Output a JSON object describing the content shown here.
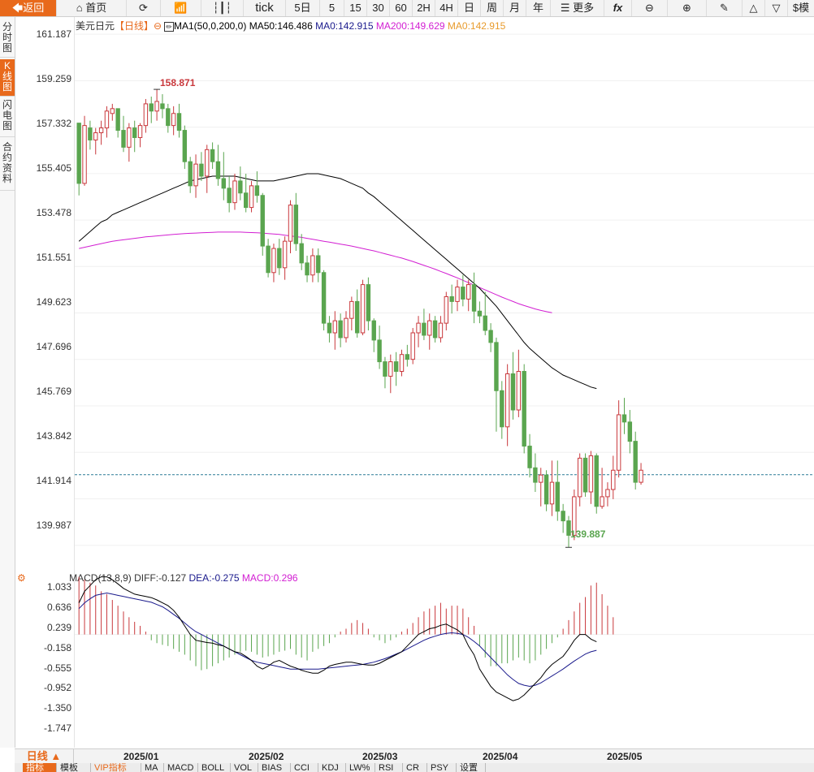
{
  "toolbar": {
    "back": "返回",
    "home": "首页",
    "tick": "tick",
    "periods": [
      "5日",
      "5",
      "15",
      "30",
      "60",
      "2H",
      "4H",
      "日",
      "周",
      "月",
      "年"
    ],
    "more": "更多",
    "fx": "fx",
    "right_label": "模"
  },
  "sidebar": {
    "items": [
      "分时图",
      "K线图",
      "闪电图",
      "合约资料"
    ],
    "active": 1
  },
  "main_header": {
    "title": "美元日元",
    "period": "【日线】",
    "ma_params": "MA1(50,0,200,0)",
    "ma50": "MA50:146.486",
    "ma0": "MA0:142.915",
    "ma200": "MA200:149.629",
    "ma0b": "MA0:142.915"
  },
  "macd_header": {
    "name": "MACD(13,8,9)",
    "diff": "DIFF:-0.127",
    "dea": "DEA:-0.275",
    "macd": "MACD:0.296"
  },
  "bottom": {
    "period_button": "日线 ▲",
    "tabs": [
      "指标",
      "模板",
      "VIP指标",
      "MA",
      "MACD",
      "BOLL",
      "VOL",
      "BIAS",
      "CCI",
      "KDJ",
      "LW%",
      "RSI",
      "CR",
      "PSY",
      "设置"
    ]
  },
  "colors": {
    "up": "#c9383c",
    "down": "#5aa54f",
    "ma50": "#000000",
    "ma200": "#d21ed2",
    "accent": "#e8691b",
    "diff": "#000000",
    "dea": "#1a1a8c"
  },
  "chart_data": [
    {
      "type": "candlestick",
      "y_ticks": [
        "161.187",
        "159.259",
        "157.332",
        "155.405",
        "153.478",
        "151.551",
        "149.623",
        "147.696",
        "145.769",
        "143.842",
        "141.914",
        "139.987"
      ],
      "ylim": [
        139.0,
        161.9
      ],
      "x_ticks": [
        "2025/01",
        "2025/02",
        "2025/03",
        "2025/04",
        "2025/05"
      ],
      "high_label": "158.871",
      "low_label": "139.887",
      "current_price": 142.915,
      "ohlc": [
        [
          157.5,
          157.5,
          154.5,
          155.0
        ],
        [
          155.0,
          157.8,
          154.9,
          157.4
        ],
        [
          157.3,
          157.6,
          156.4,
          156.8
        ],
        [
          156.8,
          157.3,
          156.2,
          157.1
        ],
        [
          157.1,
          157.6,
          156.6,
          157.3
        ],
        [
          157.3,
          158.2,
          156.9,
          158.0
        ],
        [
          157.9,
          158.3,
          157.6,
          158.1
        ],
        [
          158.1,
          158.1,
          156.9,
          157.2
        ],
        [
          157.2,
          157.8,
          156.3,
          156.5
        ],
        [
          156.5,
          157.5,
          155.9,
          157.3
        ],
        [
          157.3,
          157.6,
          156.3,
          156.9
        ],
        [
          156.9,
          157.5,
          156.5,
          157.4
        ],
        [
          157.4,
          158.5,
          157.1,
          158.3
        ],
        [
          158.3,
          158.6,
          157.5,
          158.0
        ],
        [
          158.0,
          158.9,
          157.6,
          158.4
        ],
        [
          158.3,
          158.7,
          157.7,
          158.1
        ],
        [
          158.1,
          158.3,
          157.1,
          157.4
        ],
        [
          157.4,
          158.2,
          157.0,
          157.9
        ],
        [
          157.9,
          158.3,
          156.9,
          157.2
        ],
        [
          157.2,
          157.4,
          155.6,
          155.9
        ],
        [
          155.9,
          156.1,
          154.6,
          154.9
        ],
        [
          154.9,
          156.2,
          154.4,
          155.8
        ],
        [
          155.8,
          156.3,
          155.1,
          155.3
        ],
        [
          155.3,
          156.6,
          154.6,
          156.4
        ],
        [
          156.4,
          156.7,
          155.6,
          155.9
        ],
        [
          155.9,
          156.6,
          154.9,
          155.2
        ],
        [
          155.2,
          156.3,
          154.3,
          154.8
        ],
        [
          154.8,
          155.3,
          153.8,
          154.2
        ],
        [
          154.2,
          155.4,
          153.9,
          155.1
        ],
        [
          155.1,
          155.7,
          154.3,
          154.6
        ],
        [
          154.6,
          155.4,
          153.8,
          154.0
        ],
        [
          154.0,
          155.1,
          153.8,
          154.9
        ],
        [
          154.9,
          155.5,
          154.2,
          154.5
        ],
        [
          154.5,
          154.6,
          152.0,
          152.4
        ],
        [
          152.4,
          152.7,
          151.1,
          151.3
        ],
        [
          151.3,
          152.5,
          150.9,
          152.3
        ],
        [
          152.3,
          152.7,
          151.2,
          151.5
        ],
        [
          151.5,
          152.8,
          151.0,
          152.6
        ],
        [
          152.6,
          154.3,
          152.1,
          154.1
        ],
        [
          154.1,
          154.6,
          152.2,
          152.5
        ],
        [
          152.5,
          152.9,
          151.4,
          151.7
        ],
        [
          151.7,
          152.0,
          150.9,
          151.2
        ],
        [
          151.2,
          152.3,
          150.9,
          152.0
        ],
        [
          152.0,
          152.3,
          150.9,
          151.3
        ],
        [
          151.3,
          151.4,
          148.9,
          149.2
        ],
        [
          149.2,
          149.5,
          148.4,
          148.8
        ],
        [
          148.8,
          149.7,
          148.1,
          149.3
        ],
        [
          149.3,
          149.6,
          148.2,
          148.6
        ],
        [
          148.6,
          149.7,
          148.4,
          149.4
        ],
        [
          149.4,
          150.3,
          148.9,
          150.1
        ],
        [
          150.1,
          150.6,
          148.6,
          148.8
        ],
        [
          148.8,
          151.0,
          148.7,
          150.8
        ],
        [
          150.8,
          151.1,
          148.9,
          149.3
        ],
        [
          149.3,
          149.4,
          148.0,
          148.5
        ],
        [
          148.5,
          149.1,
          147.3,
          147.6
        ],
        [
          147.6,
          147.8,
          146.5,
          147.0
        ],
        [
          147.0,
          147.9,
          146.3,
          147.6
        ],
        [
          147.6,
          148.0,
          146.6,
          147.2
        ],
        [
          147.2,
          148.1,
          147.0,
          147.9
        ],
        [
          147.9,
          148.3,
          147.4,
          147.7
        ],
        [
          147.7,
          149.0,
          147.5,
          148.8
        ],
        [
          148.8,
          149.5,
          148.2,
          149.2
        ],
        [
          149.2,
          149.8,
          148.5,
          148.7
        ],
        [
          148.7,
          149.6,
          148.1,
          149.3
        ],
        [
          149.3,
          149.5,
          148.4,
          148.6
        ],
        [
          148.6,
          149.5,
          148.4,
          149.2
        ],
        [
          149.2,
          150.5,
          148.9,
          150.3
        ],
        [
          150.3,
          150.8,
          149.6,
          150.1
        ],
        [
          150.1,
          151.0,
          149.7,
          150.7
        ],
        [
          150.7,
          151.2,
          149.9,
          150.2
        ],
        [
          150.2,
          151.0,
          149.7,
          150.8
        ],
        [
          150.8,
          151.3,
          149.2,
          149.7
        ],
        [
          149.7,
          150.1,
          149.2,
          149.5
        ],
        [
          149.5,
          150.5,
          148.7,
          148.9
        ],
        [
          148.9,
          149.2,
          148.0,
          148.4
        ],
        [
          148.4,
          148.6,
          144.7,
          146.4
        ],
        [
          146.4,
          146.8,
          144.4,
          144.9
        ],
        [
          144.9,
          147.5,
          144.1,
          147.1
        ],
        [
          147.1,
          148.0,
          145.2,
          145.6
        ],
        [
          145.6,
          148.1,
          145.3,
          147.2
        ],
        [
          147.2,
          147.5,
          143.8,
          144.1
        ],
        [
          144.1,
          144.6,
          142.8,
          143.2
        ],
        [
          143.2,
          143.8,
          142.2,
          142.6
        ],
        [
          142.6,
          143.2,
          141.6,
          142.9
        ],
        [
          142.9,
          143.1,
          141.4,
          141.7
        ],
        [
          141.7,
          143.5,
          141.2,
          142.6
        ],
        [
          142.6,
          143.5,
          141.0,
          141.4
        ],
        [
          141.4,
          141.7,
          140.5,
          141.0
        ],
        [
          141.0,
          141.2,
          139.9,
          140.4
        ],
        [
          140.4,
          142.3,
          140.2,
          142.0
        ],
        [
          142.0,
          143.8,
          141.6,
          143.6
        ],
        [
          143.6,
          143.8,
          142.0,
          142.2
        ],
        [
          142.2,
          143.9,
          141.7,
          143.7
        ],
        [
          143.7,
          143.8,
          141.3,
          141.6
        ],
        [
          141.6,
          143.2,
          141.5,
          142.0
        ],
        [
          142.0,
          142.6,
          141.6,
          142.3
        ],
        [
          142.3,
          143.7,
          141.9,
          143.1
        ],
        [
          143.1,
          146.0,
          142.8,
          145.4
        ],
        [
          145.4,
          146.1,
          144.6,
          145.1
        ],
        [
          145.1,
          145.6,
          143.8,
          144.3
        ],
        [
          144.3,
          144.7,
          142.3,
          142.6
        ],
        [
          142.6,
          143.4,
          142.5,
          143.1
        ]
      ],
      "ma50": [
        152.6,
        152.8,
        153.0,
        153.2,
        153.4,
        153.5,
        153.7,
        153.8,
        153.9,
        154.0,
        154.1,
        154.2,
        154.3,
        154.4,
        154.5,
        154.6,
        154.7,
        154.8,
        154.9,
        155.0,
        155.1,
        155.15,
        155.2,
        155.25,
        155.3,
        155.3,
        155.3,
        155.3,
        155.3,
        155.25,
        155.2,
        155.15,
        155.1,
        155.1,
        155.1,
        155.1,
        155.15,
        155.2,
        155.25,
        155.3,
        155.35,
        155.4,
        155.4,
        155.4,
        155.35,
        155.3,
        155.25,
        155.2,
        155.1,
        155.0,
        154.9,
        154.8,
        154.6,
        154.45,
        154.25,
        154.05,
        153.85,
        153.65,
        153.45,
        153.25,
        153.05,
        152.85,
        152.65,
        152.45,
        152.25,
        152.05,
        151.85,
        151.65,
        151.45,
        151.25,
        151.05,
        150.85,
        150.65,
        150.4,
        150.15,
        149.9,
        149.6,
        149.3,
        149.0,
        148.7,
        148.4,
        148.15,
        147.95,
        147.75,
        147.55,
        147.35,
        147.2,
        147.05,
        146.95,
        146.85,
        146.75,
        146.65,
        146.55,
        146.49
      ],
      "ma200": [
        152.3,
        152.35,
        152.4,
        152.45,
        152.5,
        152.55,
        152.6,
        152.63,
        152.66,
        152.69,
        152.72,
        152.75,
        152.78,
        152.8,
        152.82,
        152.84,
        152.86,
        152.88,
        152.9,
        152.92,
        152.93,
        152.94,
        152.95,
        152.96,
        152.97,
        152.98,
        152.98,
        152.98,
        152.98,
        152.98,
        152.97,
        152.96,
        152.95,
        152.94,
        152.92,
        152.9,
        152.88,
        152.85,
        152.82,
        152.79,
        152.76,
        152.72,
        152.68,
        152.64,
        152.6,
        152.56,
        152.52,
        152.48,
        152.44,
        152.4,
        152.35,
        152.3,
        152.25,
        152.2,
        152.14,
        152.08,
        152.02,
        151.96,
        151.9,
        151.83,
        151.76,
        151.68,
        151.6,
        151.52,
        151.44,
        151.35,
        151.26,
        151.17,
        151.08,
        150.98,
        150.88,
        150.78,
        150.68,
        150.58,
        150.48,
        150.38,
        150.28,
        150.19,
        150.1,
        150.01,
        149.93,
        149.86,
        149.79,
        149.73,
        149.68,
        149.63
      ],
      "ma_start_index": 0
    },
    {
      "type": "macd",
      "y_ticks": [
        "1.033",
        "0.636",
        "0.239",
        "-0.158",
        "-0.555",
        "-0.952",
        "-1.350",
        "-1.747"
      ],
      "ylim": [
        -1.95,
        1.15
      ],
      "diff": [
        0.55,
        0.75,
        0.85,
        0.95,
        1.0,
        1.0,
        0.95,
        0.88,
        0.8,
        0.75,
        0.7,
        0.68,
        0.66,
        0.64,
        0.6,
        0.55,
        0.5,
        0.42,
        0.3,
        0.15,
        0.0,
        -0.1,
        -0.12,
        -0.14,
        -0.15,
        -0.18,
        -0.2,
        -0.25,
        -0.3,
        -0.32,
        -0.38,
        -0.45,
        -0.55,
        -0.6,
        -0.55,
        -0.48,
        -0.45,
        -0.5,
        -0.55,
        -0.58,
        -0.62,
        -0.65,
        -0.67,
        -0.67,
        -0.62,
        -0.55,
        -0.52,
        -0.5,
        -0.48,
        -0.48,
        -0.5,
        -0.52,
        -0.53,
        -0.53,
        -0.5,
        -0.45,
        -0.4,
        -0.35,
        -0.3,
        -0.2,
        -0.1,
        0.0,
        0.05,
        0.1,
        0.12,
        0.16,
        0.18,
        0.13,
        0.08,
        0.0,
        -0.2,
        -0.35,
        -0.6,
        -0.75,
        -0.9,
        -1.0,
        -1.05,
        -1.1,
        -1.15,
        -1.12,
        -1.05,
        -0.95,
        -0.85,
        -0.75,
        -0.62,
        -0.52,
        -0.45,
        -0.38,
        -0.25,
        -0.1,
        0.0,
        0.0,
        -0.08,
        -0.127
      ],
      "dea": [
        0.45,
        0.55,
        0.62,
        0.68,
        0.7,
        0.72,
        0.7,
        0.68,
        0.66,
        0.64,
        0.62,
        0.6,
        0.58,
        0.56,
        0.52,
        0.48,
        0.42,
        0.35,
        0.28,
        0.2,
        0.12,
        0.05,
        0.0,
        -0.05,
        -0.1,
        -0.15,
        -0.2,
        -0.25,
        -0.3,
        -0.35,
        -0.4,
        -0.45,
        -0.48,
        -0.5,
        -0.52,
        -0.54,
        -0.56,
        -0.58,
        -0.6,
        -0.6,
        -0.6,
        -0.6,
        -0.6,
        -0.6,
        -0.59,
        -0.58,
        -0.57,
        -0.56,
        -0.55,
        -0.54,
        -0.53,
        -0.52,
        -0.5,
        -0.48,
        -0.45,
        -0.42,
        -0.38,
        -0.34,
        -0.3,
        -0.25,
        -0.2,
        -0.15,
        -0.1,
        -0.06,
        -0.03,
        0.0,
        0.02,
        0.03,
        0.02,
        0.0,
        -0.05,
        -0.12,
        -0.2,
        -0.3,
        -0.4,
        -0.5,
        -0.6,
        -0.7,
        -0.78,
        -0.85,
        -0.88,
        -0.9,
        -0.88,
        -0.84,
        -0.78,
        -0.72,
        -0.66,
        -0.6,
        -0.53,
        -0.46,
        -0.4,
        -0.34,
        -0.3,
        -0.275
      ],
      "hist": [
        1.0,
        0.95,
        0.9,
        0.85,
        0.75,
        0.7,
        0.6,
        0.5,
        0.4,
        0.3,
        0.22,
        0.15,
        0.05,
        -0.1,
        -0.15,
        -0.18,
        -0.2,
        -0.25,
        -0.3,
        -0.35,
        -0.45,
        -0.55,
        -0.62,
        -0.6,
        -0.55,
        -0.5,
        -0.45,
        -0.4,
        -0.35,
        -0.3,
        -0.28,
        -0.3,
        -0.35,
        -0.4,
        -0.38,
        -0.35,
        -0.3,
        -0.28,
        -0.25,
        -0.35,
        -0.4,
        -0.45,
        -0.3,
        -0.25,
        -0.2,
        -0.15,
        -0.05,
        0.05,
        0.1,
        0.2,
        0.25,
        0.2,
        0.1,
        -0.05,
        -0.1,
        -0.15,
        -0.1,
        -0.05,
        0.05,
        0.1,
        0.2,
        0.3,
        0.4,
        0.45,
        0.5,
        0.55,
        0.45,
        0.5,
        0.5,
        0.45,
        0.3,
        0.15,
        -0.2,
        -0.4,
        -0.55,
        -0.55,
        -0.5,
        -0.5,
        -0.45,
        -0.4,
        -0.45,
        -0.5,
        -0.45,
        -0.35,
        -0.25,
        -0.15,
        -0.05,
        0.1,
        0.25,
        0.4,
        0.55,
        0.65,
        0.85,
        0.9,
        0.7,
        0.5,
        0.3
      ]
    }
  ]
}
